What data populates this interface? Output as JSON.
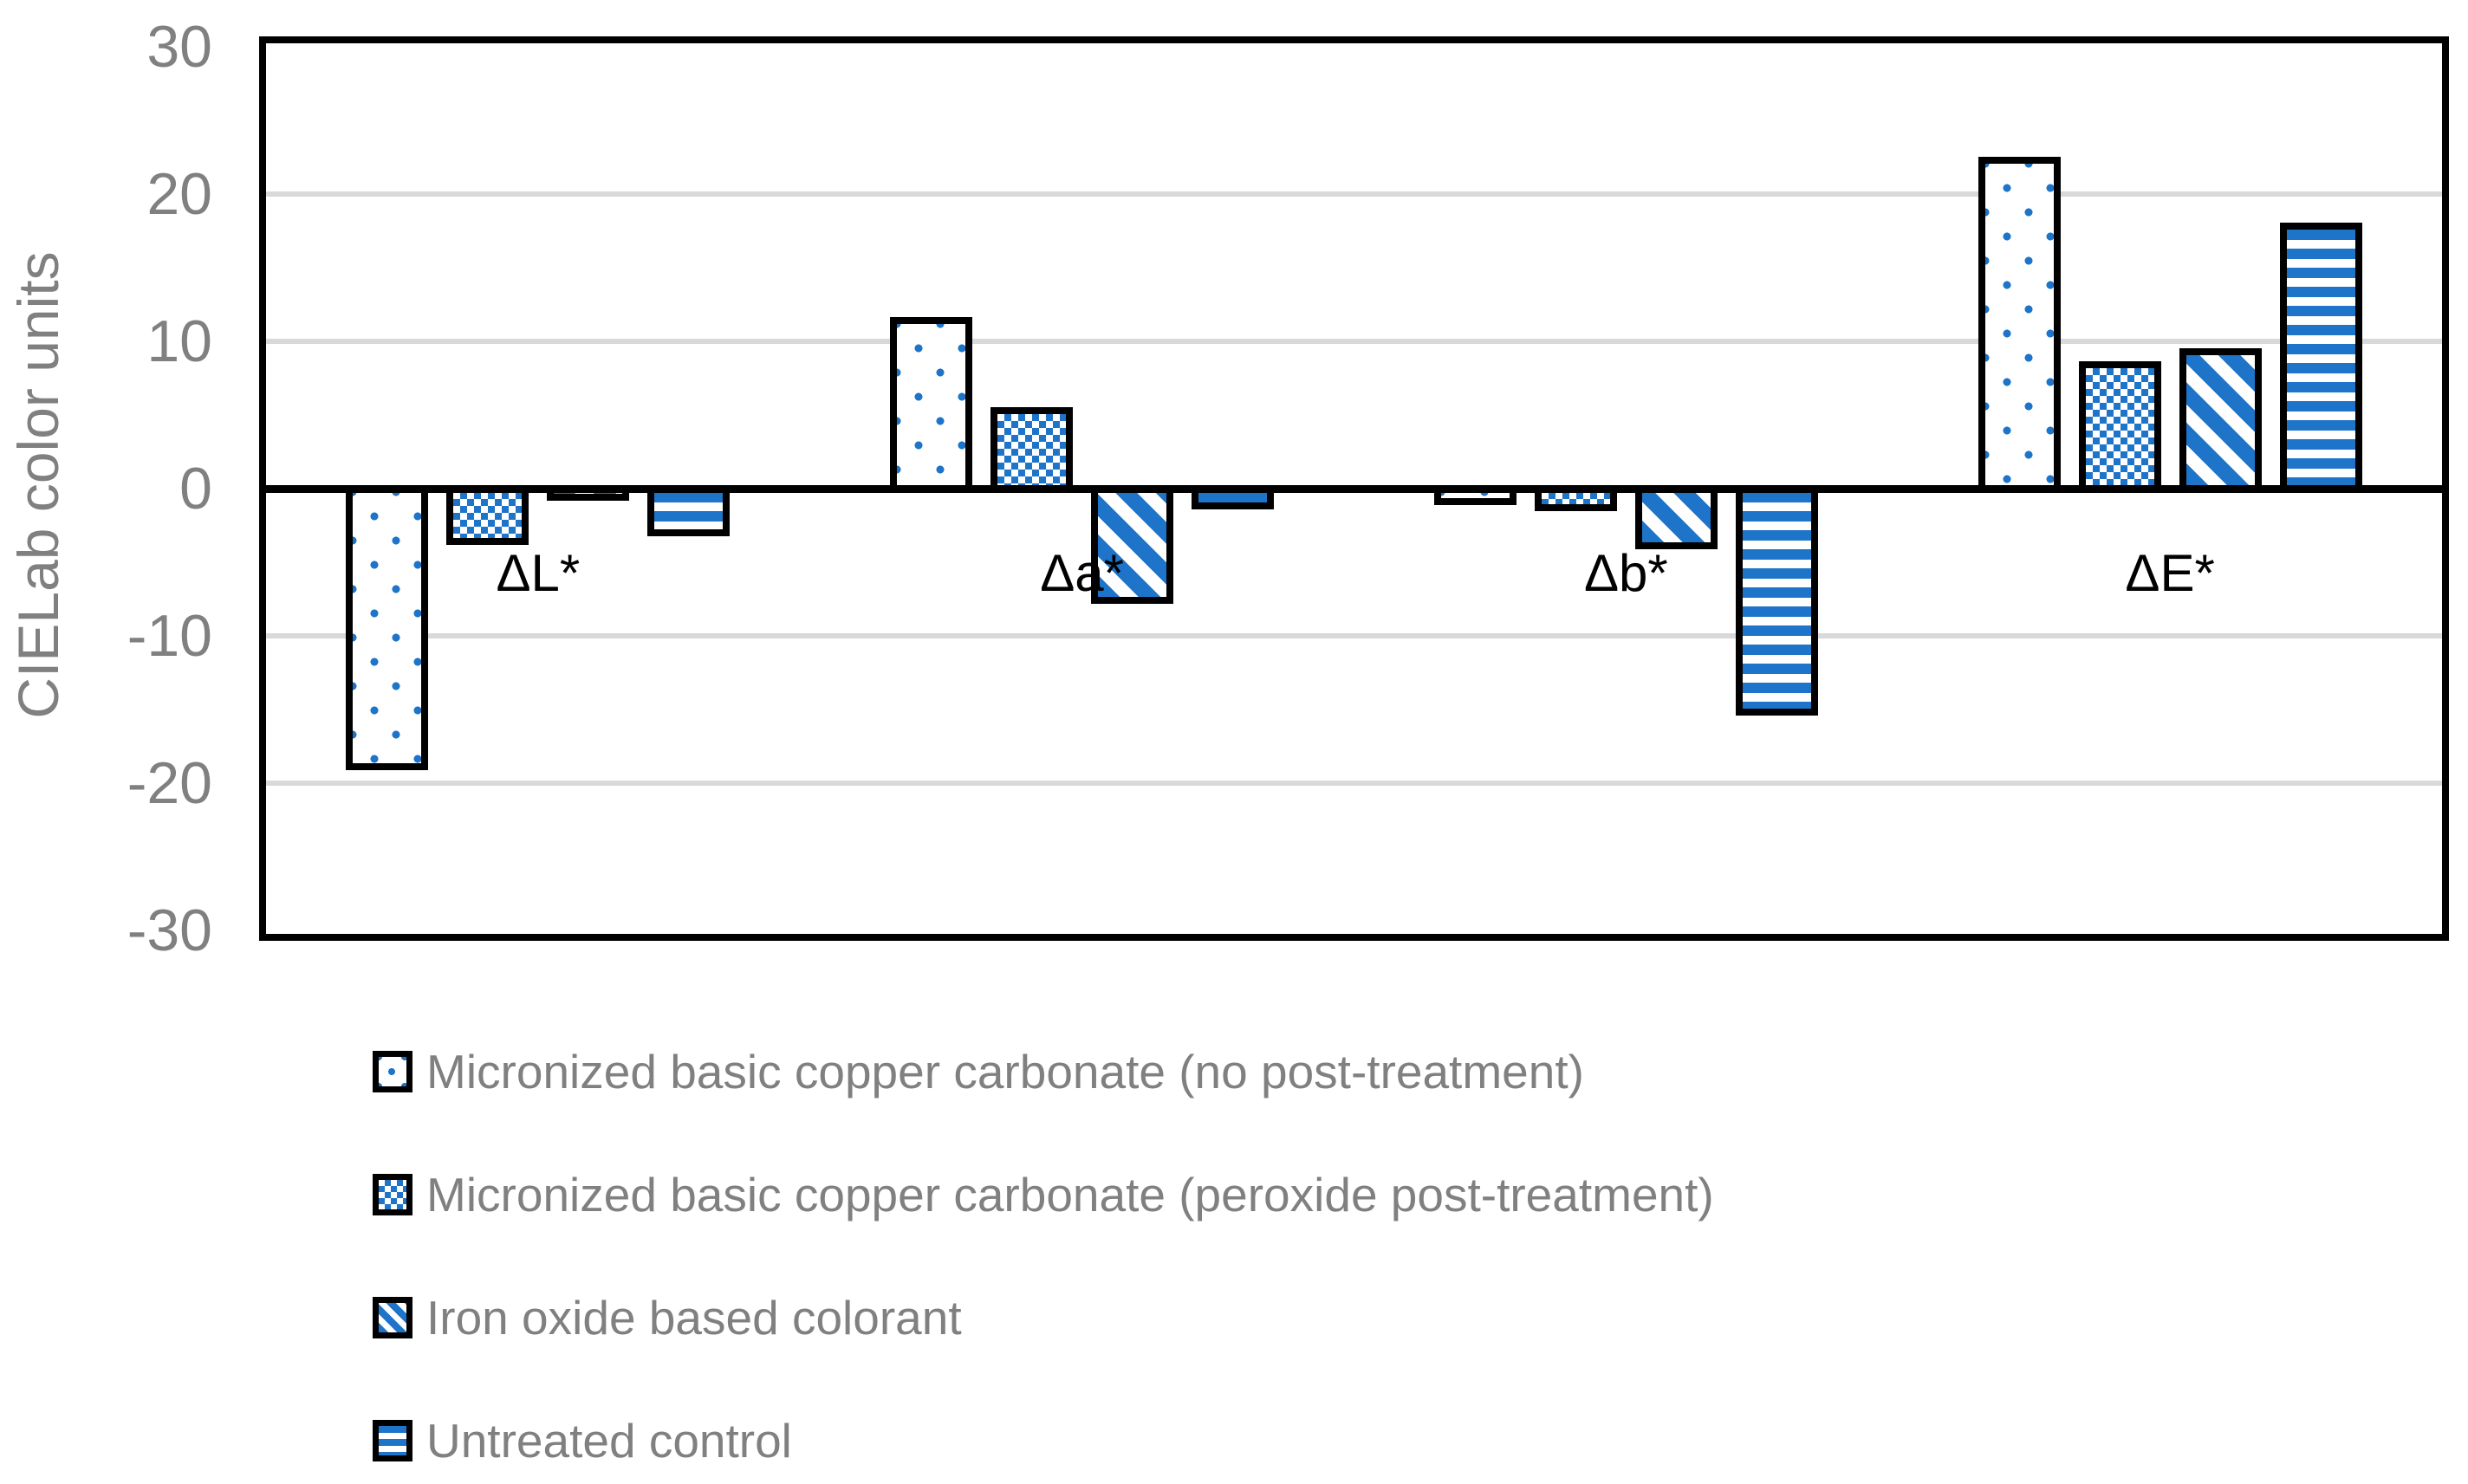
{
  "chart_data": {
    "type": "bar",
    "title": "",
    "ylabel": "CIELab color units",
    "xlabel": "",
    "ylim": [
      -30,
      30
    ],
    "yticks": [
      30,
      20,
      10,
      0,
      -10,
      -20,
      -30
    ],
    "grid": true,
    "legend_position": "bottom-left",
    "categories": [
      "ΔL*",
      "Δa*",
      "Δb*",
      "ΔE*"
    ],
    "series": [
      {
        "name": "Micronized basic copper carbonate (no post-treatment)",
        "pattern": "dots",
        "values": [
          -18.9,
          11.4,
          -0.9,
          22.3
        ]
      },
      {
        "name": "Micronized basic copper carbonate (peroxide post-treatment)",
        "pattern": "checker",
        "values": [
          -3.6,
          5.3,
          -1.3,
          8.4
        ]
      },
      {
        "name": "Iron oxide based colorant",
        "pattern": "diag",
        "values": [
          -0.6,
          -7.6,
          -3.9,
          9.3
        ]
      },
      {
        "name": "Untreated control",
        "pattern": "hstripe",
        "values": [
          -3.0,
          -1.2,
          -15.2,
          17.8
        ]
      }
    ],
    "colors": {
      "bar_fill": "#1E74C8",
      "bar_border": "#000000",
      "plot_border": "#000000",
      "gridline": "#D9D9D9",
      "axis_text": "#808080",
      "category_text": "#000000",
      "legend_text": "#808080",
      "background": "#FFFFFF"
    }
  }
}
